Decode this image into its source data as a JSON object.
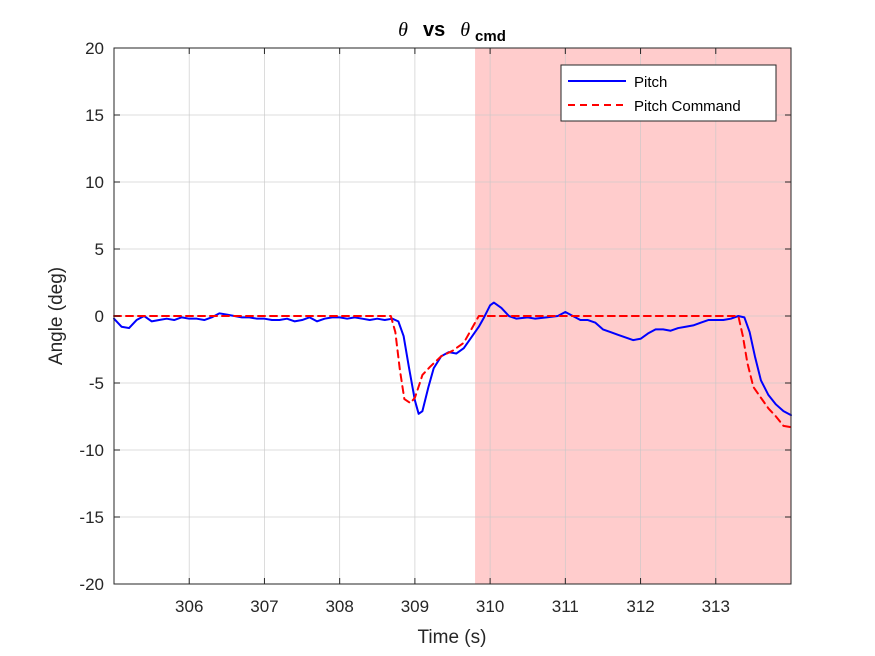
{
  "chart_data": {
    "type": "line",
    "title": {
      "symbol": "θ",
      "vs": "vs",
      "subscript": "cmd"
    },
    "xlabel": "Time (s)",
    "ylabel": "Angle (deg)",
    "xlim": [
      305.0,
      314.0
    ],
    "ylim": [
      -20,
      20
    ],
    "x_ticks": [
      306,
      307,
      308,
      309,
      310,
      311,
      312,
      313
    ],
    "y_ticks": [
      -20,
      -15,
      -10,
      -5,
      0,
      5,
      10,
      15,
      20
    ],
    "grid": true,
    "legend_position": "top-right",
    "shaded_region": {
      "x_start": 309.8,
      "x_end": 314.0,
      "color": "#ffcccc"
    },
    "series": [
      {
        "name": "Pitch",
        "color": "#0000ff",
        "style": "solid",
        "points": [
          [
            305.0,
            -0.2
          ],
          [
            305.1,
            -0.8
          ],
          [
            305.2,
            -0.9
          ],
          [
            305.3,
            -0.3
          ],
          [
            305.4,
            0.0
          ],
          [
            305.5,
            -0.4
          ],
          [
            305.6,
            -0.3
          ],
          [
            305.7,
            -0.2
          ],
          [
            305.8,
            -0.3
          ],
          [
            305.9,
            -0.1
          ],
          [
            306.0,
            -0.2
          ],
          [
            306.1,
            -0.2
          ],
          [
            306.2,
            -0.3
          ],
          [
            306.3,
            -0.1
          ],
          [
            306.4,
            0.2
          ],
          [
            306.5,
            0.1
          ],
          [
            306.6,
            0.0
          ],
          [
            306.7,
            -0.1
          ],
          [
            306.8,
            -0.1
          ],
          [
            306.9,
            -0.2
          ],
          [
            307.0,
            -0.2
          ],
          [
            307.1,
            -0.3
          ],
          [
            307.2,
            -0.3
          ],
          [
            307.3,
            -0.2
          ],
          [
            307.4,
            -0.4
          ],
          [
            307.5,
            -0.3
          ],
          [
            307.6,
            -0.1
          ],
          [
            307.7,
            -0.4
          ],
          [
            307.8,
            -0.2
          ],
          [
            307.9,
            -0.1
          ],
          [
            308.0,
            -0.1
          ],
          [
            308.1,
            -0.2
          ],
          [
            308.2,
            -0.1
          ],
          [
            308.3,
            -0.2
          ],
          [
            308.4,
            -0.3
          ],
          [
            308.5,
            -0.2
          ],
          [
            308.6,
            -0.3
          ],
          [
            308.7,
            -0.2
          ],
          [
            308.78,
            -0.4
          ],
          [
            308.85,
            -1.5
          ],
          [
            308.92,
            -3.8
          ],
          [
            309.0,
            -6.3
          ],
          [
            309.05,
            -7.3
          ],
          [
            309.1,
            -7.1
          ],
          [
            309.18,
            -5.3
          ],
          [
            309.25,
            -3.9
          ],
          [
            309.35,
            -3.0
          ],
          [
            309.45,
            -2.7
          ],
          [
            309.55,
            -2.8
          ],
          [
            309.65,
            -2.4
          ],
          [
            309.75,
            -1.6
          ],
          [
            309.85,
            -0.8
          ],
          [
            309.92,
            -0.1
          ],
          [
            310.0,
            0.8
          ],
          [
            310.05,
            1.0
          ],
          [
            310.15,
            0.6
          ],
          [
            310.25,
            0.0
          ],
          [
            310.35,
            -0.2
          ],
          [
            310.5,
            -0.1
          ],
          [
            310.6,
            -0.2
          ],
          [
            310.75,
            -0.1
          ],
          [
            310.9,
            0.0
          ],
          [
            311.0,
            0.3
          ],
          [
            311.1,
            0.0
          ],
          [
            311.2,
            -0.3
          ],
          [
            311.3,
            -0.3
          ],
          [
            311.4,
            -0.5
          ],
          [
            311.5,
            -1.0
          ],
          [
            311.6,
            -1.2
          ],
          [
            311.7,
            -1.4
          ],
          [
            311.8,
            -1.6
          ],
          [
            311.9,
            -1.8
          ],
          [
            312.0,
            -1.7
          ],
          [
            312.1,
            -1.3
          ],
          [
            312.2,
            -1.0
          ],
          [
            312.3,
            -1.0
          ],
          [
            312.4,
            -1.1
          ],
          [
            312.5,
            -0.9
          ],
          [
            312.6,
            -0.8
          ],
          [
            312.7,
            -0.7
          ],
          [
            312.8,
            -0.5
          ],
          [
            312.9,
            -0.3
          ],
          [
            313.0,
            -0.3
          ],
          [
            313.1,
            -0.3
          ],
          [
            313.2,
            -0.2
          ],
          [
            313.3,
            0.0
          ],
          [
            313.38,
            -0.1
          ],
          [
            313.45,
            -1.2
          ],
          [
            313.52,
            -3.0
          ],
          [
            313.6,
            -4.8
          ],
          [
            313.7,
            -5.9
          ],
          [
            313.8,
            -6.6
          ],
          [
            313.9,
            -7.1
          ],
          [
            314.0,
            -7.4
          ]
        ]
      },
      {
        "name": "Pitch Command",
        "color": "#ff0000",
        "style": "dashed",
        "points": [
          [
            305.0,
            0.0
          ],
          [
            306.0,
            0.0
          ],
          [
            307.0,
            0.0
          ],
          [
            308.0,
            0.0
          ],
          [
            308.68,
            0.0
          ],
          [
            308.74,
            -1.2
          ],
          [
            308.8,
            -4.0
          ],
          [
            308.86,
            -6.2
          ],
          [
            308.94,
            -6.5
          ],
          [
            309.0,
            -6.1
          ],
          [
            309.06,
            -5.1
          ],
          [
            309.1,
            -4.4
          ],
          [
            309.2,
            -3.8
          ],
          [
            309.35,
            -3.0
          ],
          [
            309.5,
            -2.6
          ],
          [
            309.65,
            -2.0
          ],
          [
            309.75,
            -1.0
          ],
          [
            309.85,
            0.0
          ],
          [
            310.0,
            0.0
          ],
          [
            311.0,
            0.0
          ],
          [
            312.0,
            0.0
          ],
          [
            313.0,
            0.0
          ],
          [
            313.3,
            0.0
          ],
          [
            313.36,
            -1.5
          ],
          [
            313.42,
            -3.5
          ],
          [
            313.5,
            -5.3
          ],
          [
            313.6,
            -6.1
          ],
          [
            313.7,
            -6.9
          ],
          [
            313.8,
            -7.5
          ],
          [
            313.9,
            -8.2
          ],
          [
            314.0,
            -8.3
          ]
        ]
      }
    ]
  }
}
